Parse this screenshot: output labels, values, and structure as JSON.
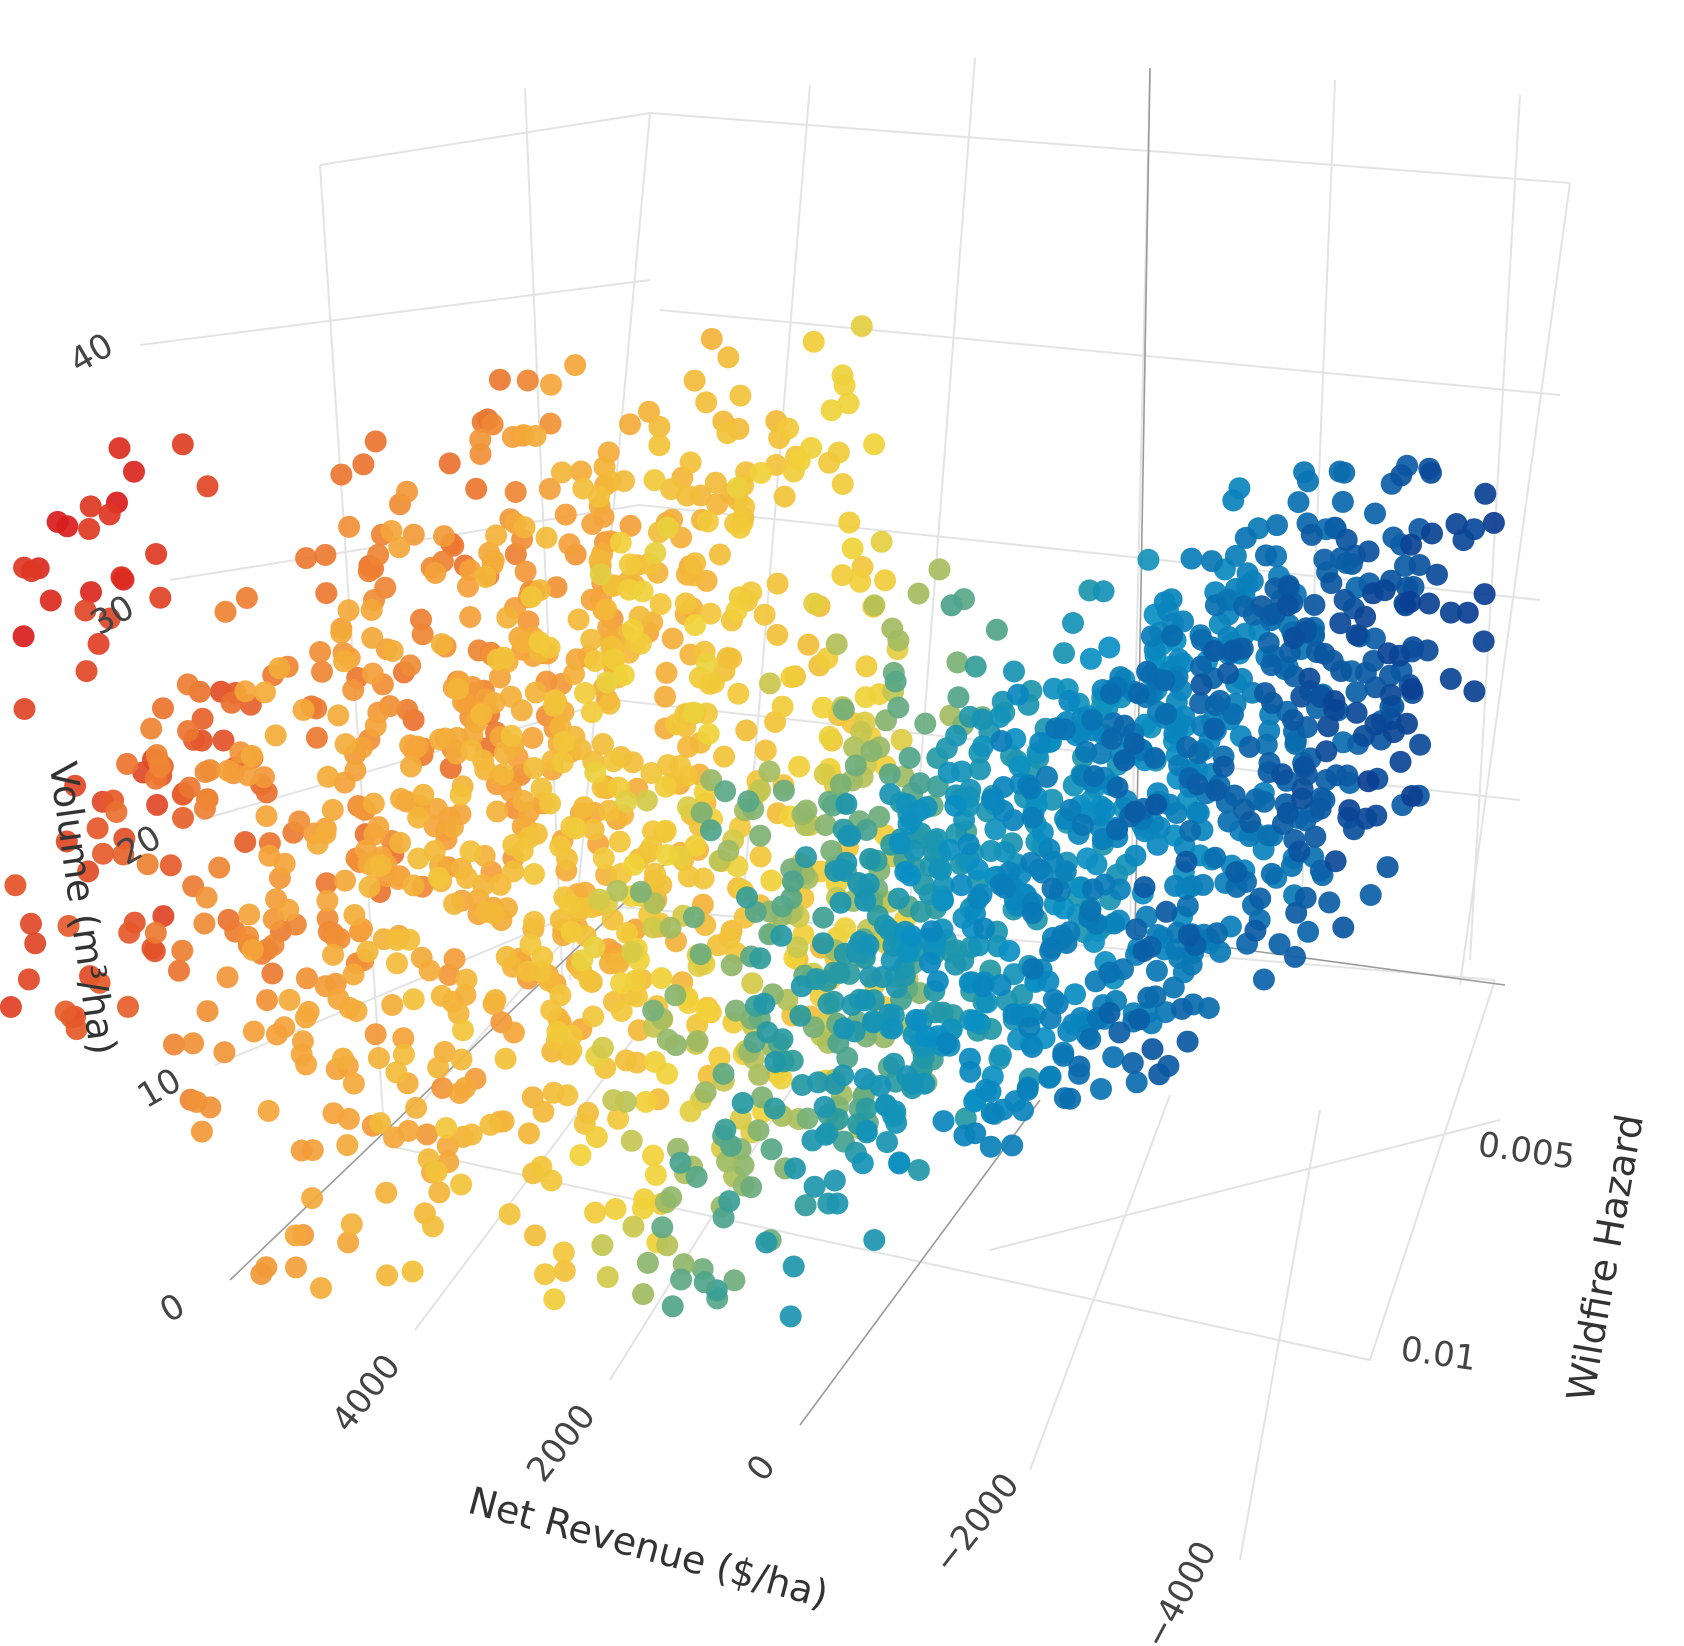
{
  "chart_data": {
    "type": "scatter",
    "projection": "3d",
    "x_axis": {
      "title": "Net Revenue ($/ha)",
      "ticks": [
        4000,
        2000,
        0,
        -2000,
        -4000
      ],
      "tick_labels": [
        "4000",
        "2000",
        "0",
        "−2000",
        "−4000"
      ]
    },
    "y_axis": {
      "title": "Wildfire Hazard",
      "ticks": [
        0.005,
        0.01
      ],
      "tick_labels": [
        "0.005",
        "0.01"
      ]
    },
    "z_axis": {
      "title": "Volume (m³/ha)",
      "ticks": [
        0,
        10,
        20,
        30,
        40
      ],
      "tick_labels": [
        "0",
        "10",
        "20",
        "30",
        "40"
      ]
    },
    "color_by": "Net Revenue ($/ha)",
    "colorscale": [
      "#d7191c",
      "#f4a13a",
      "#f1d23a",
      "#2a9a9e",
      "#0a8fc4",
      "#0b3d91"
    ],
    "clusters": [
      {
        "x_range": [
          5200,
          4200
        ],
        "hazard_range": [
          0.0165,
          0.01
        ],
        "z_range": [
          45,
          37
        ],
        "count": 38
      },
      {
        "x_range": [
          4400,
          3600
        ],
        "hazard_range": [
          0.016,
          0.0095
        ],
        "z_range": [
          33,
          22
        ],
        "count": 50
      },
      {
        "x_range": [
          3400,
          1800
        ],
        "hazard_range": [
          0.015,
          0.005
        ],
        "z_range": [
          40,
          18
        ],
        "count": 280
      },
      {
        "x_range": [
          2600,
          800
        ],
        "hazard_range": [
          0.0135,
          0.004
        ],
        "z_range": [
          30,
          8
        ],
        "count": 300
      },
      {
        "x_range": [
          1800,
          200
        ],
        "hazard_range": [
          0.011,
          0.003
        ],
        "z_range": [
          38,
          25
        ],
        "count": 130
      },
      {
        "x_range": [
          1200,
          -600
        ],
        "hazard_range": [
          0.011,
          0.002
        ],
        "z_range": [
          25,
          2
        ],
        "count": 320
      },
      {
        "x_range": [
          200,
          -1400
        ],
        "hazard_range": [
          0.01,
          0.003
        ],
        "z_range": [
          20,
          0
        ],
        "count": 240
      },
      {
        "x_range": [
          -1200,
          -2800
        ],
        "hazard_range": [
          0.009,
          0.001
        ],
        "z_range": [
          22,
          5
        ],
        "count": 380
      },
      {
        "x_range": [
          -2400,
          -4200
        ],
        "hazard_range": [
          0.008,
          0.0005
        ],
        "z_range": [
          25,
          5
        ],
        "count": 320
      },
      {
        "x_range": [
          -3600,
          -5000
        ],
        "hazard_range": [
          0.005,
          0.0005
        ],
        "z_range": [
          26,
          12
        ],
        "count": 110
      }
    ],
    "grid": true,
    "legend": "none"
  }
}
